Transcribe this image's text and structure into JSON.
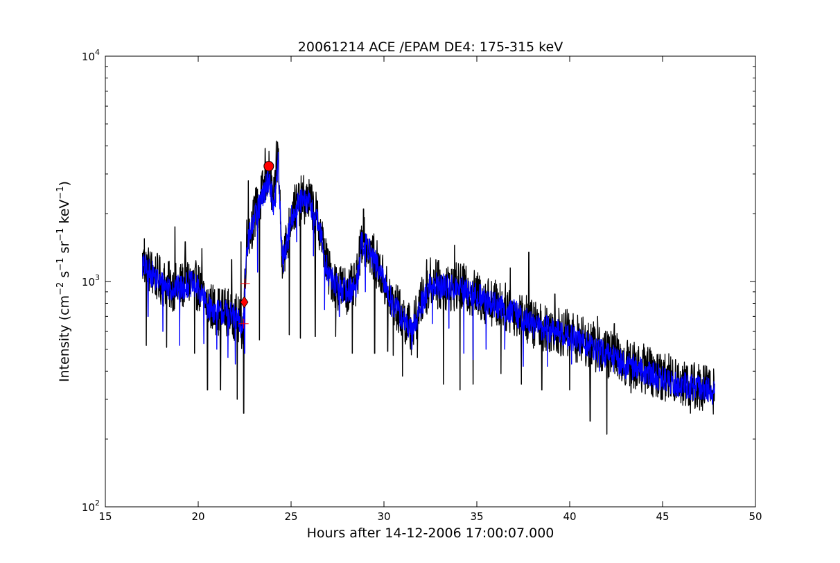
{
  "chart_data": {
    "type": "line",
    "title": "20061214 ACE /EPAM DE4: 175-315 keV",
    "xlabel": "Hours after 14-12-2006 17:00:07.000",
    "ylabel": "Intensity (cm$^{-2}$ s$^{-1}$ sr$^{-1}$ keV$^{-1}$)",
    "ylabel_parts": {
      "prefix": "Intensity (cm",
      "exp1": "−2",
      "mid1": " s",
      "exp2": "−1",
      "mid2": " sr",
      "exp3": "−1",
      "mid3": " keV",
      "exp4": "−1",
      "suffix": ")"
    },
    "xlim": [
      15,
      50
    ],
    "ylim": [
      100,
      10000
    ],
    "yscale": "log",
    "grid": false,
    "xticks": [
      15,
      20,
      25,
      30,
      35,
      40,
      45,
      50
    ],
    "xtick_labels": [
      "15",
      "20",
      "25",
      "30",
      "35",
      "40",
      "45",
      "50"
    ],
    "yticks": [
      {
        "value": 100,
        "base": "10",
        "exp": "2"
      },
      {
        "value": 1000,
        "base": "10",
        "exp": "3"
      },
      {
        "value": 10000,
        "base": "10",
        "exp": "4"
      }
    ],
    "series": [
      {
        "color": "#000000",
        "style": "raw",
        "envelope": [
          [
            17.0,
            1200
          ],
          [
            17.5,
            1100
          ],
          [
            18.0,
            1000
          ],
          [
            18.5,
            950
          ],
          [
            19.0,
            940
          ],
          [
            19.5,
            1000
          ],
          [
            20.0,
            950
          ],
          [
            20.5,
            800
          ],
          [
            21.0,
            740
          ],
          [
            21.5,
            740
          ],
          [
            22.0,
            700
          ],
          [
            22.4,
            620
          ],
          [
            22.6,
            1500
          ],
          [
            23.0,
            1900
          ],
          [
            23.5,
            2500
          ],
          [
            23.8,
            3000
          ],
          [
            24.1,
            2200
          ],
          [
            24.3,
            3800
          ],
          [
            24.5,
            1300
          ],
          [
            24.8,
            1500
          ],
          [
            25.0,
            2000
          ],
          [
            25.5,
            2300
          ],
          [
            26.0,
            2300
          ],
          [
            26.5,
            1800
          ],
          [
            27.0,
            1100
          ],
          [
            27.5,
            950
          ],
          [
            28.0,
            920
          ],
          [
            28.5,
            950
          ],
          [
            28.8,
            1550
          ],
          [
            29.2,
            1400
          ],
          [
            29.5,
            1250
          ],
          [
            30.0,
            1000
          ],
          [
            30.5,
            800
          ],
          [
            31.0,
            700
          ],
          [
            31.5,
            600
          ],
          [
            32.0,
            800
          ],
          [
            32.5,
            1000
          ],
          [
            33.0,
            960
          ],
          [
            34.0,
            940
          ],
          [
            35.0,
            870
          ],
          [
            36.0,
            800
          ],
          [
            37.0,
            740
          ],
          [
            38.0,
            650
          ],
          [
            39.0,
            620
          ],
          [
            40.0,
            580
          ],
          [
            41.0,
            530
          ],
          [
            42.0,
            480
          ],
          [
            43.0,
            440
          ],
          [
            44.0,
            410
          ],
          [
            45.0,
            380
          ],
          [
            46.0,
            360
          ],
          [
            47.0,
            340
          ],
          [
            47.8,
            330
          ]
        ],
        "spikes": [
          [
            17.1,
            1550
          ],
          [
            17.2,
            520
          ],
          [
            18.3,
            510
          ],
          [
            18.75,
            1750
          ],
          [
            19.3,
            1500
          ],
          [
            19.8,
            480
          ],
          [
            20.2,
            1400
          ],
          [
            20.5,
            330
          ],
          [
            21.2,
            330
          ],
          [
            21.8,
            1250
          ],
          [
            22.1,
            300
          ],
          [
            22.3,
            1500
          ],
          [
            22.45,
            260
          ],
          [
            22.7,
            2800
          ],
          [
            23.1,
            2600
          ],
          [
            23.3,
            550
          ],
          [
            23.6,
            3900
          ],
          [
            24.2,
            4200
          ],
          [
            24.9,
            580
          ],
          [
            25.5,
            560
          ],
          [
            26.0,
            2700
          ],
          [
            26.3,
            570
          ],
          [
            26.6,
            1500
          ],
          [
            27.4,
            570
          ],
          [
            28.3,
            480
          ],
          [
            28.9,
            2100
          ],
          [
            29.5,
            480
          ],
          [
            30.2,
            490
          ],
          [
            30.5,
            470
          ],
          [
            31.0,
            380
          ],
          [
            31.8,
            460
          ],
          [
            32.3,
            1250
          ],
          [
            32.8,
            1250
          ],
          [
            33.2,
            350
          ],
          [
            33.8,
            1450
          ],
          [
            34.1,
            330
          ],
          [
            34.3,
            1200
          ],
          [
            34.8,
            350
          ],
          [
            35.6,
            1000
          ],
          [
            36.3,
            390
          ],
          [
            36.8,
            1150
          ],
          [
            37.4,
            350
          ],
          [
            37.8,
            1350
          ],
          [
            38.5,
            330
          ],
          [
            39.2,
            880
          ],
          [
            40.0,
            330
          ],
          [
            40.5,
            650
          ],
          [
            41.1,
            240
          ],
          [
            41.5,
            700
          ],
          [
            42.0,
            210
          ],
          [
            42.4,
            650
          ],
          [
            43.3,
            320
          ],
          [
            44.2,
            510
          ],
          [
            45.0,
            300
          ],
          [
            45.7,
            450
          ],
          [
            46.5,
            260
          ],
          [
            47.2,
            420
          ],
          [
            47.7,
            300
          ]
        ]
      },
      {
        "color": "#0000ff",
        "style": "smoothed",
        "envelope": [
          [
            17.0,
            1180
          ],
          [
            17.5,
            1080
          ],
          [
            18.0,
            980
          ],
          [
            18.5,
            940
          ],
          [
            19.0,
            930
          ],
          [
            19.5,
            980
          ],
          [
            20.0,
            930
          ],
          [
            20.5,
            780
          ],
          [
            21.0,
            730
          ],
          [
            21.5,
            730
          ],
          [
            22.0,
            690
          ],
          [
            22.4,
            610
          ],
          [
            22.6,
            1450
          ],
          [
            23.0,
            1850
          ],
          [
            23.5,
            2400
          ],
          [
            23.8,
            2900
          ],
          [
            24.1,
            2100
          ],
          [
            24.3,
            3500
          ],
          [
            24.5,
            1300
          ],
          [
            24.8,
            1450
          ],
          [
            25.0,
            1950
          ],
          [
            25.5,
            2250
          ],
          [
            26.0,
            2250
          ],
          [
            26.5,
            1750
          ],
          [
            27.0,
            1080
          ],
          [
            27.5,
            940
          ],
          [
            28.0,
            910
          ],
          [
            28.5,
            940
          ],
          [
            28.8,
            1500
          ],
          [
            29.2,
            1380
          ],
          [
            29.5,
            1230
          ],
          [
            30.0,
            990
          ],
          [
            30.5,
            790
          ],
          [
            31.0,
            690
          ],
          [
            31.5,
            590
          ],
          [
            32.0,
            790
          ],
          [
            32.5,
            980
          ],
          [
            33.0,
            950
          ],
          [
            34.0,
            930
          ],
          [
            35.0,
            860
          ],
          [
            36.0,
            790
          ],
          [
            37.0,
            730
          ],
          [
            38.0,
            640
          ],
          [
            39.0,
            610
          ],
          [
            40.0,
            570
          ],
          [
            41.0,
            520
          ],
          [
            42.0,
            470
          ],
          [
            43.0,
            430
          ],
          [
            44.0,
            400
          ],
          [
            45.0,
            370
          ],
          [
            46.0,
            350
          ],
          [
            47.0,
            335
          ],
          [
            47.8,
            325
          ]
        ],
        "spikes": [
          [
            17.3,
            700
          ],
          [
            18.1,
            600
          ],
          [
            19.0,
            520
          ],
          [
            20.3,
            530
          ],
          [
            21.0,
            500
          ],
          [
            21.6,
            460
          ],
          [
            22.0,
            430
          ],
          [
            22.5,
            480
          ],
          [
            23.2,
            1100
          ],
          [
            24.6,
            1100
          ],
          [
            25.3,
            1500
          ],
          [
            26.2,
            1300
          ],
          [
            26.8,
            750
          ],
          [
            27.6,
            700
          ],
          [
            29.0,
            900
          ],
          [
            30.4,
            700
          ],
          [
            31.5,
            500
          ],
          [
            32.6,
            650
          ],
          [
            33.5,
            620
          ],
          [
            34.3,
            480
          ],
          [
            34.8,
            450
          ],
          [
            35.5,
            500
          ],
          [
            36.5,
            500
          ],
          [
            37.5,
            420
          ],
          [
            38.8,
            420
          ],
          [
            40.1,
            430
          ],
          [
            41.6,
            400
          ],
          [
            43.0,
            370
          ],
          [
            44.5,
            340
          ],
          [
            46.0,
            310
          ],
          [
            47.4,
            300
          ]
        ]
      }
    ],
    "markers": [
      {
        "shape": "diamond",
        "color": "#ff0000",
        "x": 22.48,
        "y": 810
      },
      {
        "shape": "circle",
        "color": "#ff0000",
        "x": 23.8,
        "y": 3250
      },
      {
        "shape": "plus",
        "color": "#ff0000",
        "x": 22.52,
        "y": 980
      },
      {
        "shape": "plus",
        "color": "#ff0000",
        "x": 22.45,
        "y": 650
      }
    ]
  }
}
